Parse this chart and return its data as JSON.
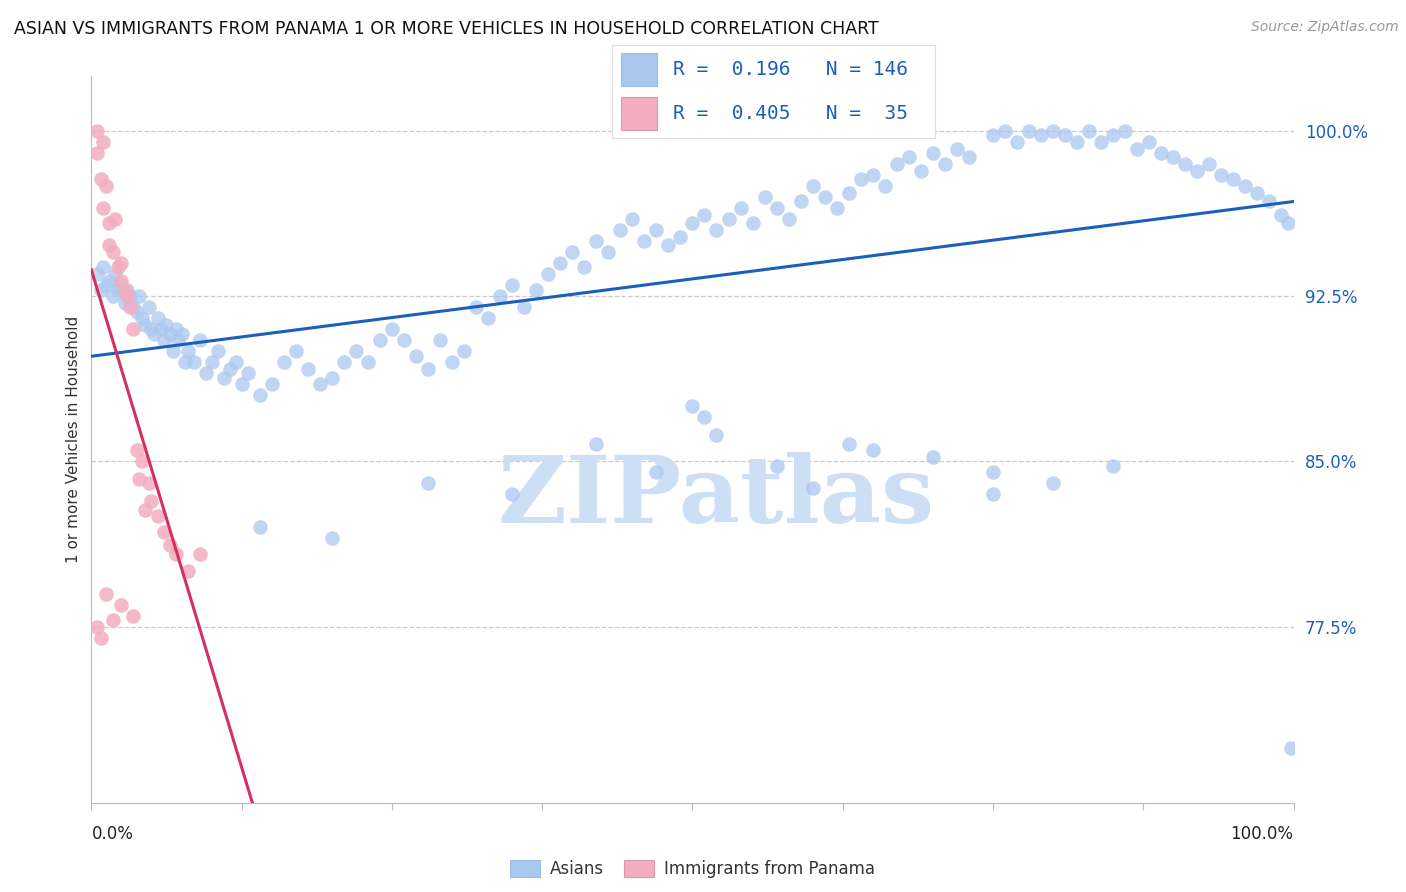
{
  "title": "ASIAN VS IMMIGRANTS FROM PANAMA 1 OR MORE VEHICLES IN HOUSEHOLD CORRELATION CHART",
  "source": "Source: ZipAtlas.com",
  "ylabel": "1 or more Vehicles in Household",
  "ytick_labels": [
    "77.5%",
    "85.0%",
    "92.5%",
    "100.0%"
  ],
  "ytick_values": [
    0.775,
    0.85,
    0.925,
    1.0
  ],
  "xmin": 0.0,
  "xmax": 1.0,
  "ymin": 0.695,
  "ymax": 1.025,
  "blue_R": 0.196,
  "blue_N": 146,
  "pink_R": 0.405,
  "pink_N": 35,
  "blue_color": "#aac8ef",
  "pink_color": "#f2adc0",
  "blue_line_color": "#1c5fba",
  "pink_line_color": "#d63060",
  "watermark": "ZIPatlas",
  "grid_color": "#cccccc",
  "title_fontsize": 12.5,
  "source_fontsize": 10,
  "tick_label_fontsize": 12,
  "ylabel_fontsize": 11,
  "legend_fontsize": 14,
  "blue_scatter_x": [
    0.005,
    0.008,
    0.01,
    0.012,
    0.015,
    0.018,
    0.02,
    0.022,
    0.025,
    0.028,
    0.03,
    0.032,
    0.035,
    0.038,
    0.04,
    0.042,
    0.045,
    0.048,
    0.05,
    0.052,
    0.055,
    0.058,
    0.06,
    0.062,
    0.065,
    0.068,
    0.07,
    0.072,
    0.075,
    0.078,
    0.08,
    0.085,
    0.09,
    0.095,
    0.1,
    0.105,
    0.11,
    0.115,
    0.12,
    0.125,
    0.13,
    0.14,
    0.15,
    0.16,
    0.17,
    0.18,
    0.19,
    0.2,
    0.21,
    0.22,
    0.23,
    0.24,
    0.25,
    0.26,
    0.27,
    0.28,
    0.29,
    0.3,
    0.31,
    0.32,
    0.33,
    0.34,
    0.35,
    0.36,
    0.37,
    0.38,
    0.39,
    0.4,
    0.41,
    0.42,
    0.43,
    0.44,
    0.45,
    0.46,
    0.47,
    0.48,
    0.49,
    0.5,
    0.51,
    0.52,
    0.53,
    0.54,
    0.55,
    0.56,
    0.57,
    0.58,
    0.59,
    0.6,
    0.61,
    0.62,
    0.63,
    0.64,
    0.65,
    0.66,
    0.67,
    0.68,
    0.69,
    0.7,
    0.71,
    0.72,
    0.73,
    0.75,
    0.76,
    0.77,
    0.78,
    0.79,
    0.8,
    0.81,
    0.82,
    0.83,
    0.84,
    0.85,
    0.86,
    0.87,
    0.88,
    0.89,
    0.9,
    0.91,
    0.92,
    0.93,
    0.94,
    0.95,
    0.96,
    0.97,
    0.98,
    0.99,
    0.995,
    0.998,
    0.5,
    0.51,
    0.63,
    0.75,
    0.14,
    0.2,
    0.28,
    0.35,
    0.42,
    0.47,
    0.52,
    0.57,
    0.6,
    0.65,
    0.7,
    0.75,
    0.8,
    0.85
  ],
  "blue_scatter_y": [
    0.935,
    0.928,
    0.938,
    0.93,
    0.932,
    0.925,
    0.935,
    0.928,
    0.93,
    0.922,
    0.928,
    0.925,
    0.92,
    0.918,
    0.925,
    0.915,
    0.912,
    0.92,
    0.91,
    0.908,
    0.915,
    0.91,
    0.905,
    0.912,
    0.908,
    0.9,
    0.91,
    0.905,
    0.908,
    0.895,
    0.9,
    0.895,
    0.905,
    0.89,
    0.895,
    0.9,
    0.888,
    0.892,
    0.895,
    0.885,
    0.89,
    0.88,
    0.885,
    0.895,
    0.9,
    0.892,
    0.885,
    0.888,
    0.895,
    0.9,
    0.895,
    0.905,
    0.91,
    0.905,
    0.898,
    0.892,
    0.905,
    0.895,
    0.9,
    0.92,
    0.915,
    0.925,
    0.93,
    0.92,
    0.928,
    0.935,
    0.94,
    0.945,
    0.938,
    0.95,
    0.945,
    0.955,
    0.96,
    0.95,
    0.955,
    0.948,
    0.952,
    0.958,
    0.962,
    0.955,
    0.96,
    0.965,
    0.958,
    0.97,
    0.965,
    0.96,
    0.968,
    0.975,
    0.97,
    0.965,
    0.972,
    0.978,
    0.98,
    0.975,
    0.985,
    0.988,
    0.982,
    0.99,
    0.985,
    0.992,
    0.988,
    0.998,
    1.0,
    0.995,
    1.0,
    0.998,
    1.0,
    0.998,
    0.995,
    1.0,
    0.995,
    0.998,
    1.0,
    0.992,
    0.995,
    0.99,
    0.988,
    0.985,
    0.982,
    0.985,
    0.98,
    0.978,
    0.975,
    0.972,
    0.968,
    0.962,
    0.958,
    0.72,
    0.875,
    0.87,
    0.858,
    0.835,
    0.82,
    0.815,
    0.84,
    0.835,
    0.858,
    0.845,
    0.862,
    0.848,
    0.838,
    0.855,
    0.852,
    0.845,
    0.84,
    0.848
  ],
  "pink_scatter_x": [
    0.005,
    0.005,
    0.008,
    0.01,
    0.01,
    0.012,
    0.015,
    0.015,
    0.018,
    0.02,
    0.022,
    0.025,
    0.025,
    0.028,
    0.03,
    0.032,
    0.035,
    0.038,
    0.04,
    0.042,
    0.045,
    0.048,
    0.05,
    0.055,
    0.06,
    0.065,
    0.07,
    0.08,
    0.09,
    0.005,
    0.008,
    0.012,
    0.018,
    0.025,
    0.035
  ],
  "pink_scatter_y": [
    1.0,
    0.99,
    0.978,
    0.995,
    0.965,
    0.975,
    0.958,
    0.948,
    0.945,
    0.96,
    0.938,
    0.932,
    0.94,
    0.928,
    0.925,
    0.92,
    0.91,
    0.855,
    0.842,
    0.85,
    0.828,
    0.84,
    0.832,
    0.825,
    0.818,
    0.812,
    0.808,
    0.8,
    0.808,
    0.775,
    0.77,
    0.79,
    0.778,
    0.785,
    0.78
  ]
}
